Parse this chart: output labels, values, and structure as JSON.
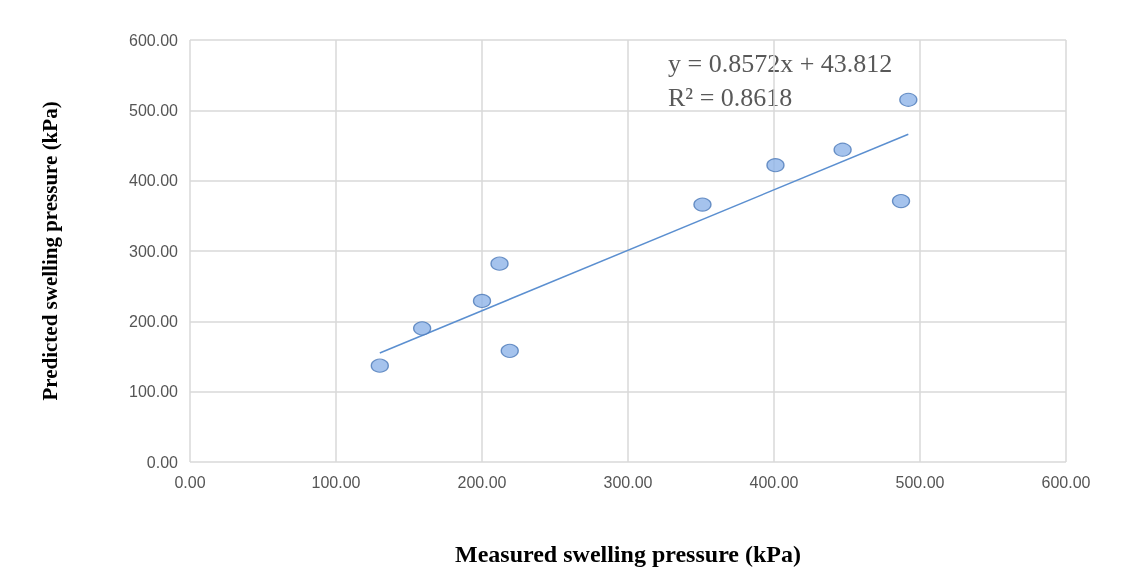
{
  "chart_data": {
    "type": "scatter",
    "xlabel": "Measured swelling pressure (kPa)",
    "ylabel": "Predicted swelling pressure (kPa)",
    "annotations": [
      "y = 0.8572x + 43.812",
      "R² = 0.8618"
    ],
    "series": [
      {
        "color": "#8fb4e8",
        "marker": "circle",
        "x": [
          130,
          159,
          200,
          212,
          219,
          351,
          401,
          447,
          487,
          492
        ],
        "values": [
          137,
          190,
          229,
          282,
          158,
          366,
          422,
          444,
          371,
          515
        ]
      },
      {
        "type": "line",
        "color": "#5b8fd0",
        "marker": "none",
        "x": [
          130,
          492
        ],
        "values": [
          155,
          466
        ]
      }
    ],
    "xlim": [
      0,
      600
    ],
    "ylim": [
      0,
      600
    ],
    "xticks": [
      {
        "value": 0,
        "label": "0.00"
      },
      {
        "value": 100,
        "label": "100.00"
      },
      {
        "value": 200,
        "label": "200.00"
      },
      {
        "value": 300,
        "label": "300.00"
      },
      {
        "value": 400,
        "label": "400.00"
      },
      {
        "value": 500,
        "label": "500.00"
      },
      {
        "value": 600,
        "label": "600.00"
      }
    ],
    "yticks": [
      {
        "value": 0,
        "label": "0.00"
      },
      {
        "value": 100,
        "label": "100.00"
      },
      {
        "value": 200,
        "label": "200.00"
      },
      {
        "value": 300,
        "label": "300.00"
      },
      {
        "value": 400,
        "label": "400.00"
      },
      {
        "value": 500,
        "label": "500.00"
      },
      {
        "value": 600,
        "label": "600.00"
      }
    ],
    "grid": true
  }
}
